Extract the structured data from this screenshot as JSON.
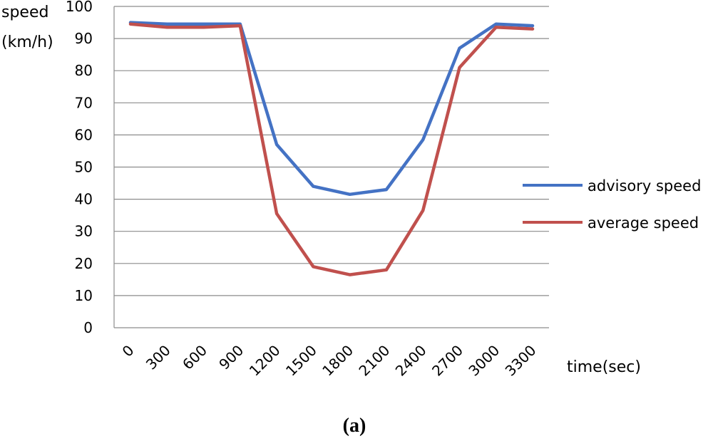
{
  "chart_data": {
    "type": "line",
    "x": [
      0,
      300,
      600,
      900,
      1200,
      1500,
      1800,
      2100,
      2400,
      2700,
      3000,
      3300
    ],
    "xtick_labels": [
      "0",
      "300",
      "600",
      "900",
      "1200",
      "1500",
      "1800",
      "2100",
      "2400",
      "2700",
      "3000",
      "3300"
    ],
    "series": [
      {
        "name": "advisory speed",
        "color": "#4472c4",
        "values": [
          95,
          94.5,
          94.5,
          94.5,
          57,
          44,
          41.5,
          43,
          58.5,
          87,
          94.5,
          94
        ]
      },
      {
        "name": "average speed",
        "color": "#c0504d",
        "values": [
          94.5,
          93.5,
          93.5,
          94,
          35.5,
          19,
          16.5,
          18,
          36.5,
          81,
          93.5,
          93
        ]
      }
    ],
    "ylabel_line1": "speed",
    "ylabel_line2": "(km/h)",
    "xlabel": "time(sec)",
    "ylim": [
      0,
      100
    ],
    "yticks": [
      0,
      10,
      20,
      30,
      40,
      50,
      60,
      70,
      80,
      90,
      100
    ],
    "grid": true,
    "legend_position": "right"
  },
  "caption": "(a)"
}
